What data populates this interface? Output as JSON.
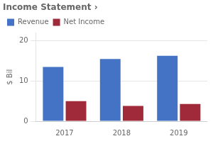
{
  "chart_data": {
    "type": "bar",
    "title": "Income Statement ›",
    "ylabel": "$ Bil",
    "categories": [
      "2017",
      "2018",
      "2019"
    ],
    "series": [
      {
        "name": "Revenue",
        "color": "#4472C4",
        "values": [
          13.5,
          15.5,
          16.3
        ]
      },
      {
        "name": "Net Income",
        "color": "#A0293A",
        "values": [
          5.0,
          3.8,
          4.3
        ]
      }
    ],
    "ylim": [
      0,
      22
    ],
    "yticks": [
      0,
      10,
      20
    ],
    "grid": true,
    "legend": "upper left"
  }
}
